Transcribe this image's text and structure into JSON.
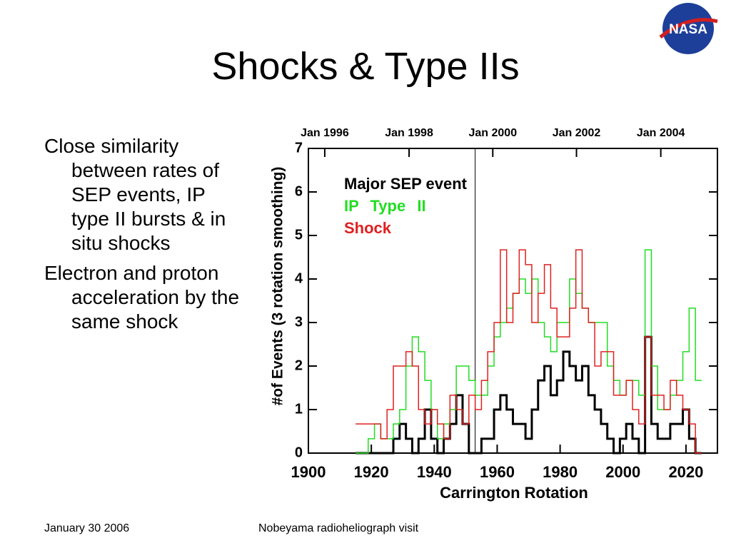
{
  "title": "Shocks & Type IIs",
  "logo": "NASA",
  "bullets": [
    "Close similarity between rates of SEP events, IP type II bursts & in situ shocks",
    "Electron and proton acceleration by the same shock"
  ],
  "footer": {
    "date": "January 30 2006",
    "text": "Nobeyama radioheliograph visit"
  },
  "chart_data": {
    "type": "step",
    "xlabel": "Carrington Rotation",
    "ylabel": "#of Events (3 rotation smoothing)",
    "xlim": [
      1900,
      2030
    ],
    "ylim": [
      0,
      7
    ],
    "xticks": [
      1900,
      1920,
      1940,
      1960,
      1980,
      2000,
      2020
    ],
    "yticks": [
      0,
      1,
      2,
      3,
      4,
      5,
      6,
      7
    ],
    "x2ticks": [
      {
        "value": 1905.2,
        "label": "Jan 1996"
      },
      {
        "value": 1932,
        "label": "Jan 1998"
      },
      {
        "value": 1958.6,
        "label": "Jan 2000"
      },
      {
        "value": 1985.2,
        "label": "Jan 2002"
      },
      {
        "value": 2012,
        "label": "Jan 2004"
      }
    ],
    "vline": 1953,
    "x": [
      1916,
      1918,
      1920,
      1922,
      1924,
      1926,
      1928,
      1930,
      1932,
      1934,
      1936,
      1938,
      1940,
      1942,
      1944,
      1946,
      1948,
      1950,
      1952,
      1954,
      1956,
      1958,
      1960,
      1962,
      1964,
      1966,
      1968,
      1970,
      1972,
      1974,
      1976,
      1978,
      1980,
      1982,
      1984,
      1986,
      1988,
      1990,
      1992,
      1994,
      1996,
      1998,
      2000,
      2002,
      2004,
      2006,
      2008,
      2010,
      2012,
      2014,
      2016,
      2018,
      2020,
      2022,
      2024
    ],
    "series": [
      {
        "name": "Major SEP event",
        "color": "#000000",
        "width": 3,
        "values": [
          0,
          0,
          0,
          0,
          0,
          0,
          0.33,
          0.67,
          0.33,
          0,
          0.33,
          1,
          0.33,
          0,
          0.33,
          0.67,
          1.33,
          0.67,
          0,
          0,
          0.33,
          0.33,
          1,
          1.33,
          1,
          0.67,
          0.67,
          0.33,
          1,
          1.67,
          2,
          1.33,
          1.67,
          2.33,
          2,
          1.67,
          2,
          1.33,
          1,
          0.67,
          0.33,
          0,
          0.33,
          0.67,
          0.33,
          0,
          2.67,
          0.67,
          0.33,
          0.33,
          0.67,
          0.67,
          1,
          0.33,
          0
        ]
      },
      {
        "name": "IP Type II",
        "color": "#22dd22",
        "width": 1.5,
        "values": [
          0,
          0,
          0.33,
          0.67,
          0.33,
          0.33,
          0.67,
          1,
          2,
          2.67,
          2.33,
          1.67,
          1,
          0.33,
          0.67,
          1,
          2,
          2,
          1.67,
          1.33,
          1.33,
          2,
          2.67,
          3,
          3.33,
          3.67,
          4,
          3.67,
          4,
          3,
          2.67,
          2.33,
          3,
          3,
          4,
          3.67,
          3.33,
          3,
          3,
          3,
          2,
          1.67,
          1.33,
          1.67,
          1.67,
          1.33,
          4.67,
          2,
          1,
          1,
          1.33,
          1.67,
          2.33,
          3.33,
          1.67
        ]
      },
      {
        "name": "Shock",
        "color": "#e02020",
        "width": 1.5,
        "values": [
          0.67,
          0.67,
          0.67,
          0.67,
          0.33,
          1,
          2,
          2,
          2.33,
          2,
          1,
          0.67,
          1,
          0.67,
          0.33,
          1.33,
          1,
          0.67,
          1.33,
          1,
          1.67,
          2.33,
          3,
          4.67,
          3,
          3.67,
          4.67,
          4.33,
          3,
          3.67,
          4.33,
          3.33,
          2.67,
          2.67,
          3.33,
          4.67,
          3.33,
          3,
          2,
          2.33,
          2.33,
          1.33,
          1.33,
          1.67,
          1,
          0.67,
          2.67,
          1.33,
          1.33,
          1,
          1.67,
          1.33,
          1,
          0.67,
          0
        ]
      }
    ]
  }
}
